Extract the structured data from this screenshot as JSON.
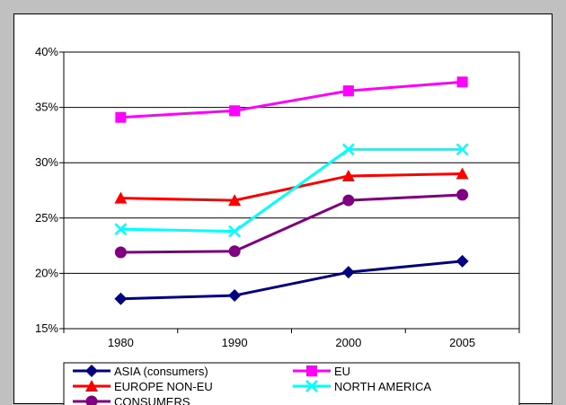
{
  "chart_data": {
    "type": "line",
    "title": "",
    "xlabel": "",
    "ylabel": "",
    "categories": [
      "1980",
      "1990",
      "2000",
      "2005"
    ],
    "y_ticks": [
      "15%",
      "20%",
      "25%",
      "30%",
      "35%",
      "40%"
    ],
    "ylim": [
      15,
      40
    ],
    "grid": "horizontal",
    "legend_position": "bottom",
    "series": [
      {
        "name": "ASIA (consumers)",
        "values": [
          17.7,
          18.0,
          20.1,
          21.1
        ],
        "color": "#000080",
        "marker": "diamond"
      },
      {
        "name": "EU",
        "values": [
          34.1,
          34.7,
          36.5,
          37.3
        ],
        "color": "#ff00ff",
        "marker": "square"
      },
      {
        "name": "EUROPE NON-EU",
        "values": [
          26.8,
          26.6,
          28.8,
          29.0
        ],
        "color": "#ff0000",
        "marker": "triangle"
      },
      {
        "name": "NORTH AMERICA",
        "values": [
          24.0,
          23.8,
          31.2,
          31.2
        ],
        "color": "#00ffff",
        "marker": "x"
      },
      {
        "name": "CONSUMERS",
        "values": [
          21.9,
          22.0,
          26.6,
          27.1
        ],
        "color": "#800080",
        "marker": "circle"
      }
    ]
  }
}
